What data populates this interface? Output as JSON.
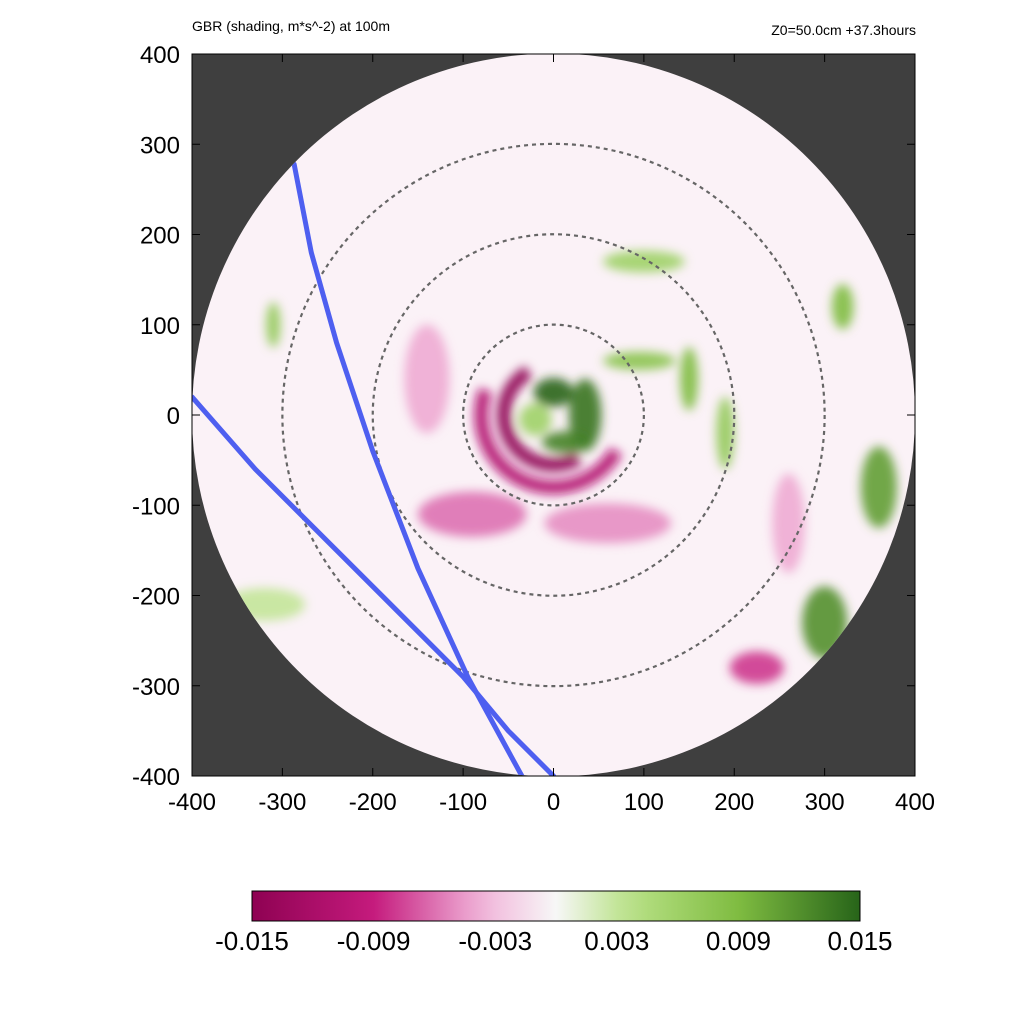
{
  "header": {
    "title_left": "GBR (shading, m*s^-2) at 100m",
    "title_right": "Z0=50.0cm  +37.3hours"
  },
  "colors": {
    "background_mask": "#3f3f3f",
    "track": "#4e5ff0",
    "ring": "#666666",
    "pink_strong": "#8e0152",
    "pink_mid": "#c51b7d",
    "pink_light": "#f1b6da",
    "neutral": "#f7f7f7",
    "green_light": "#b8e186",
    "green_mid": "#7fbc41",
    "green_strong": "#276419"
  },
  "chart_data": {
    "type": "heatmap",
    "title": "GBR (shading, m*s^-2) at 100m",
    "subtitle": "Z0=50.0cm  +37.3hours",
    "xlabel": "",
    "ylabel": "",
    "xlim": [
      -400,
      400
    ],
    "ylim": [
      -400,
      400
    ],
    "x_ticks": [
      "-400",
      "-300",
      "-200",
      "-100",
      "0",
      "100",
      "200",
      "300",
      "400"
    ],
    "y_ticks": [
      "400",
      "300",
      "200",
      "100",
      "0",
      "-100",
      "-200",
      "-300",
      "-400"
    ],
    "domain_radius": 400,
    "range_rings": [
      100,
      200,
      300
    ],
    "colorbar": {
      "min": -0.015,
      "max": 0.015,
      "ticks": [
        "-0.015",
        "-0.009",
        "-0.003",
        "0.003",
        "0.009",
        "0.015"
      ],
      "colormap": "PiYG"
    },
    "tracks": [
      {
        "points": [
          [
            -287,
            278
          ],
          [
            -268,
            180
          ],
          [
            -240,
            80
          ],
          [
            -200,
            -40
          ],
          [
            -150,
            -170
          ],
          [
            -95,
            -290
          ],
          [
            -35,
            -400
          ]
        ]
      },
      {
        "points": [
          [
            -400,
            20
          ],
          [
            -330,
            -60
          ],
          [
            -250,
            -140
          ],
          [
            -170,
            -220
          ],
          [
            -100,
            -290
          ],
          [
            -50,
            -350
          ],
          [
            0,
            -400
          ]
        ]
      }
    ],
    "features": [
      {
        "kind": "arc",
        "r": 55,
        "a0": 120,
        "a1": 300,
        "value": -0.015
      },
      {
        "kind": "arc",
        "r": 80,
        "a0": 160,
        "a1": 330,
        "value": -0.011
      },
      {
        "kind": "blob",
        "x": 0,
        "y": 25,
        "rx": 22,
        "ry": 16,
        "value": 0.015
      },
      {
        "kind": "blob",
        "x": 35,
        "y": 0,
        "rx": 18,
        "ry": 40,
        "value": 0.014
      },
      {
        "kind": "blob",
        "x": 15,
        "y": -30,
        "rx": 28,
        "ry": 12,
        "value": 0.013
      },
      {
        "kind": "blob",
        "x": -20,
        "y": -5,
        "rx": 18,
        "ry": 18,
        "value": 0.006
      },
      {
        "kind": "blob",
        "x": 95,
        "y": 60,
        "rx": 40,
        "ry": 10,
        "value": 0.008
      },
      {
        "kind": "blob",
        "x": 150,
        "y": 40,
        "rx": 10,
        "ry": 35,
        "value": 0.009
      },
      {
        "kind": "blob",
        "x": 100,
        "y": 170,
        "rx": 45,
        "ry": 12,
        "value": 0.006
      },
      {
        "kind": "blob",
        "x": 190,
        "y": -20,
        "rx": 10,
        "ry": 40,
        "value": 0.007
      },
      {
        "kind": "blob",
        "x": 360,
        "y": -80,
        "rx": 20,
        "ry": 45,
        "value": 0.011
      },
      {
        "kind": "blob",
        "x": 300,
        "y": -230,
        "rx": 25,
        "ry": 40,
        "value": 0.012
      },
      {
        "kind": "blob",
        "x": 225,
        "y": -280,
        "rx": 30,
        "ry": 18,
        "value": -0.008
      },
      {
        "kind": "blob",
        "x": 320,
        "y": 120,
        "rx": 12,
        "ry": 25,
        "value": 0.009
      },
      {
        "kind": "blob",
        "x": -310,
        "y": 100,
        "rx": 8,
        "ry": 25,
        "value": 0.007
      },
      {
        "kind": "blob",
        "x": -320,
        "y": -210,
        "rx": 45,
        "ry": 18,
        "value": 0.003
      },
      {
        "kind": "blob",
        "x": -90,
        "y": -110,
        "rx": 60,
        "ry": 25,
        "value": -0.006
      },
      {
        "kind": "blob",
        "x": 60,
        "y": -120,
        "rx": 70,
        "ry": 22,
        "value": -0.005
      },
      {
        "kind": "blob",
        "x": -140,
        "y": 40,
        "rx": 25,
        "ry": 60,
        "value": -0.004
      },
      {
        "kind": "blob",
        "x": 260,
        "y": -120,
        "rx": 18,
        "ry": 55,
        "value": -0.004
      }
    ]
  }
}
